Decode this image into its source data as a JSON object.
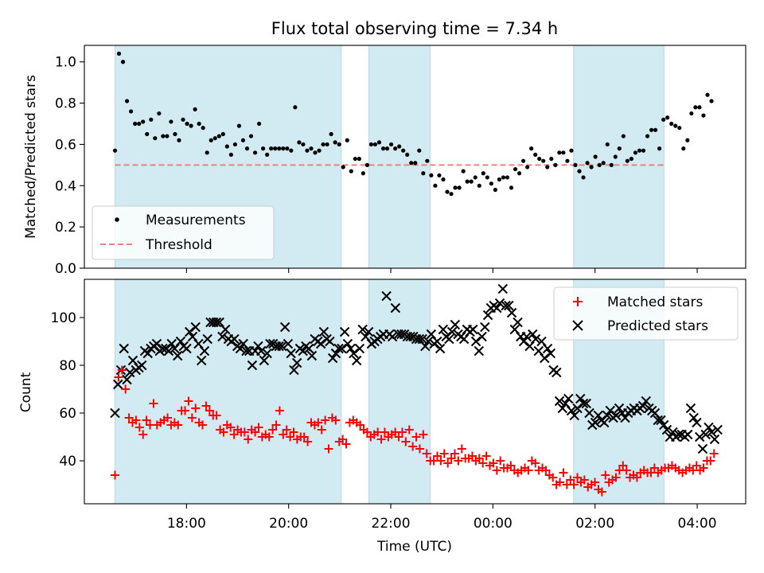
{
  "figure": {
    "title": "Flux total observing time = 7.34 h",
    "xlabel": "Time (UTC)",
    "x_ticks": [
      {
        "label": "18:00",
        "hours": 18
      },
      {
        "label": "20:00",
        "hours": 20
      },
      {
        "label": "22:00",
        "hours": 22
      },
      {
        "label": "00:00",
        "hours": 24
      },
      {
        "label": "02:00",
        "hours": 26
      },
      {
        "label": "04:00",
        "hours": 28
      }
    ],
    "shaded_intervals_hours": [
      [
        16.6,
        21.03
      ],
      [
        21.57,
        22.77
      ],
      [
        25.58,
        27.35
      ]
    ],
    "shade_color": "#add8e6"
  },
  "chart_data": [
    {
      "type": "scatter",
      "name": "ratio-panel",
      "xlabel": "",
      "ylabel": "Matched/Predicted stars",
      "xlim": [
        16.0,
        28.95
      ],
      "ylim": [
        0.0,
        1.08
      ],
      "y_ticks": [
        "0.0",
        "0.2",
        "0.4",
        "0.6",
        "0.8",
        "1.0"
      ],
      "legend_position": "lower-left",
      "series": [
        {
          "name": "Measurements",
          "color": "#000000",
          "marker": "dot",
          "values": [
            0.57,
            1.04,
            1.0,
            0.81,
            0.76,
            0.7,
            0.7,
            0.71,
            0.65,
            0.72,
            0.63,
            0.75,
            0.64,
            0.64,
            0.71,
            0.65,
            0.62,
            0.72,
            0.7,
            0.69,
            0.77,
            0.7,
            0.68,
            0.56,
            0.62,
            0.63,
            0.64,
            0.65,
            0.59,
            0.55,
            0.6,
            0.69,
            0.62,
            0.58,
            0.64,
            0.56,
            0.7,
            0.58,
            0.55,
            0.58,
            0.58,
            0.58,
            0.58,
            0.58,
            0.57,
            0.78,
            0.61,
            0.6,
            0.57,
            0.58,
            0.56,
            0.57,
            0.6,
            0.6,
            0.65,
            0.61,
            0.6,
            0.49,
            0.62,
            0.47,
            0.53,
            0.53,
            0.46,
            0.5,
            0.6,
            0.6,
            0.61,
            0.58,
            0.58,
            0.6,
            0.58,
            0.59,
            0.57,
            0.55,
            0.51,
            0.51,
            0.57,
            0.46,
            0.52,
            0.45,
            0.4,
            0.45,
            0.43,
            0.37,
            0.36,
            0.39,
            0.39,
            0.47,
            0.42,
            0.42,
            0.44,
            0.4,
            0.46,
            0.44,
            0.41,
            0.38,
            0.43,
            0.44,
            0.44,
            0.39,
            0.48,
            0.46,
            0.52,
            0.49,
            0.58,
            0.55,
            0.53,
            0.52,
            0.49,
            0.53,
            0.5,
            0.56,
            0.56,
            0.52,
            0.57,
            0.5,
            0.47,
            0.44,
            0.51,
            0.49,
            0.54,
            0.5,
            0.51,
            0.6,
            0.5,
            0.54,
            0.58,
            0.64,
            0.52,
            0.53,
            0.56,
            0.57,
            0.57,
            0.64,
            0.67,
            0.67,
            0.58,
            0.72,
            0.73,
            0.7,
            0.69,
            0.68,
            0.58,
            0.62,
            0.75,
            0.78,
            0.78,
            0.74,
            0.84,
            0.81
          ]
        },
        {
          "name": "Threshold",
          "color": "#f08080",
          "style": "dashed",
          "y": 0.5
        }
      ]
    },
    {
      "type": "scatter",
      "name": "count-panel",
      "xlabel": "Time (UTC)",
      "ylabel": "Count",
      "xlim": [
        16.0,
        28.95
      ],
      "ylim": [
        22,
        116
      ],
      "y_ticks": [
        "40",
        "60",
        "80",
        "100"
      ],
      "legend_position": "upper-right",
      "series": [
        {
          "name": "Matched stars",
          "color": "#ff0000",
          "marker": "plus",
          "values": [
            34,
            75,
            78,
            70,
            58,
            56,
            57,
            54,
            51,
            57,
            55,
            64,
            55,
            56,
            57,
            58,
            55,
            56,
            55,
            61,
            61,
            65,
            58,
            62,
            56,
            55,
            63,
            61,
            59,
            59,
            53,
            52,
            55,
            54,
            51,
            53,
            52,
            52,
            49,
            53,
            52,
            54,
            50,
            51,
            50,
            53,
            55,
            61,
            51,
            53,
            50,
            52,
            49,
            50,
            50,
            48,
            56,
            55,
            56,
            53,
            57,
            45,
            58,
            57,
            48,
            49,
            47,
            56,
            57,
            56,
            55,
            53,
            52,
            50,
            51,
            52,
            49,
            52,
            50,
            51,
            52,
            50,
            52,
            48,
            53,
            46,
            50,
            45,
            51,
            43,
            40,
            40,
            42,
            40,
            43,
            39,
            41,
            43,
            40,
            45,
            41,
            41,
            42,
            40,
            41,
            39,
            42,
            38,
            39,
            36,
            40,
            37,
            37,
            38,
            36,
            35,
            36,
            37,
            36,
            40,
            39,
            36,
            37,
            36,
            34,
            33,
            30,
            31,
            35,
            30,
            32,
            30,
            33,
            31,
            32,
            29,
            30,
            31,
            28,
            27,
            34,
            31,
            32,
            33,
            36,
            38,
            36,
            33,
            34,
            33,
            35,
            36,
            35,
            35,
            37,
            35,
            36,
            37,
            37,
            38,
            37,
            36,
            35,
            36,
            37,
            36,
            38,
            36,
            37,
            40,
            40,
            43
          ],
          "x_start": 16.6,
          "x_end": 28.33
        },
        {
          "name": "Predicted stars",
          "color": "#000000",
          "marker": "x",
          "values": [
            60,
            72,
            78,
            87,
            74,
            77,
            82,
            78,
            79,
            80,
            86,
            85,
            87,
            88,
            89,
            86,
            87,
            87,
            86,
            89,
            87,
            84,
            90,
            88,
            87,
            94,
            92,
            96,
            89,
            82,
            86,
            91,
            98,
            98,
            98,
            98,
            92,
            95,
            91,
            90,
            91,
            88,
            87,
            89,
            86,
            86,
            80,
            86,
            88,
            86,
            82,
            85,
            89,
            89,
            88,
            88,
            88,
            96,
            89,
            85,
            78,
            81,
            87,
            86,
            88,
            87,
            84,
            91,
            90,
            89,
            94,
            91,
            90,
            83,
            85,
            87,
            87,
            94,
            89,
            87,
            85,
            82,
            87,
            95,
            92,
            94,
            89,
            90,
            91,
            92,
            93,
            109,
            93,
            92,
            104,
            93,
            93,
            93,
            92,
            92,
            92,
            91,
            91,
            91,
            88,
            90,
            93,
            89,
            90,
            87,
            95,
            92,
            91,
            94,
            97,
            93,
            92,
            91,
            95,
            94,
            95,
            90,
            86,
            92,
            96,
            101,
            104,
            105,
            104,
            106,
            112,
            105,
            105,
            102,
            95,
            98,
            92,
            90,
            92,
            88,
            93,
            91,
            86,
            90,
            83,
            87,
            85,
            78,
            77,
            65,
            62,
            64,
            66,
            61,
            59,
            62,
            66,
            64,
            64,
            60,
            55,
            56,
            59,
            57,
            56,
            59,
            61,
            58,
            59,
            62,
            60,
            58,
            60,
            61,
            62,
            61,
            62,
            63,
            65,
            62,
            61,
            60,
            57,
            57,
            55,
            53,
            50,
            52,
            50,
            51,
            51,
            50,
            51,
            62,
            58,
            56,
            50,
            45,
            51,
            54,
            52,
            49,
            53
          ],
          "x_start": 16.6,
          "x_end": 28.4
        }
      ]
    }
  ]
}
